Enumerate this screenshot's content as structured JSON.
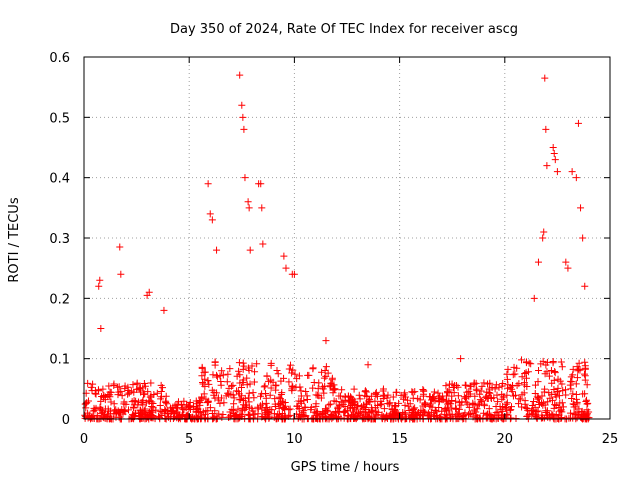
{
  "chart_data": {
    "type": "scatter",
    "title": "Day 350 of 2024, Rate Of TEC Index for receiver ascg",
    "xlabel": "GPS time / hours",
    "ylabel": "ROTI / TECUs",
    "xlim": [
      0,
      25
    ],
    "ylim": [
      0,
      0.6
    ],
    "x_ticks": [
      0,
      5,
      10,
      15,
      20,
      25
    ],
    "x_tick_labels": [
      "0",
      "5",
      "10",
      "15",
      "20",
      "25"
    ],
    "y_ticks": [
      0,
      0.1,
      0.2,
      0.3,
      0.4,
      0.5,
      0.6
    ],
    "y_tick_labels": [
      "0",
      "0.1",
      "0.2",
      "0.3",
      "0.4",
      "0.5",
      "0.6"
    ],
    "grid": true,
    "marker": "+",
    "series": [
      {
        "name": "ROTI",
        "color": "#ff0000",
        "x": [
          0.7,
          0.75,
          0.8,
          1.7,
          1.75,
          3.0,
          3.1,
          3.8,
          5.9,
          6.0,
          6.1,
          6.3,
          7.4,
          7.5,
          7.55,
          7.6,
          7.65,
          7.8,
          7.85,
          7.9,
          8.3,
          8.4,
          8.45,
          8.5,
          9.5,
          9.6,
          9.9,
          10.0,
          11.5,
          13.5,
          17.9,
          21.4,
          21.6,
          21.8,
          21.85,
          21.9,
          21.95,
          22.0,
          22.3,
          22.35,
          22.4,
          22.5,
          22.9,
          23.0,
          23.2,
          23.4,
          23.5,
          23.6,
          23.7,
          23.8
        ],
        "y": [
          0.22,
          0.23,
          0.15,
          0.285,
          0.24,
          0.205,
          0.21,
          0.18,
          0.39,
          0.34,
          0.33,
          0.28,
          0.57,
          0.52,
          0.5,
          0.48,
          0.4,
          0.36,
          0.35,
          0.28,
          0.39,
          0.39,
          0.35,
          0.29,
          0.27,
          0.25,
          0.24,
          0.24,
          0.13,
          0.09,
          0.1,
          0.2,
          0.26,
          0.3,
          0.31,
          0.565,
          0.48,
          0.42,
          0.45,
          0.44,
          0.43,
          0.41,
          0.26,
          0.25,
          0.41,
          0.4,
          0.49,
          0.35,
          0.3,
          0.22
        ],
        "bands": [
          {
            "x": [
              0.0,
              4.0
            ],
            "y": [
              0.0,
              0.06
            ]
          },
          {
            "x": [
              4.0,
              5.5
            ],
            "y": [
              0.0,
              0.03
            ]
          },
          {
            "x": [
              5.5,
              9.0
            ],
            "y": [
              0.0,
              0.1
            ]
          },
          {
            "x": [
              9.0,
              12.0
            ],
            "y": [
              0.0,
              0.09
            ]
          },
          {
            "x": [
              12.0,
              17.0
            ],
            "y": [
              0.0,
              0.05
            ]
          },
          {
            "x": [
              17.0,
              20.0
            ],
            "y": [
              0.0,
              0.06
            ]
          },
          {
            "x": [
              20.0,
              24.0
            ],
            "y": [
              0.0,
              0.1
            ]
          }
        ]
      }
    ]
  }
}
